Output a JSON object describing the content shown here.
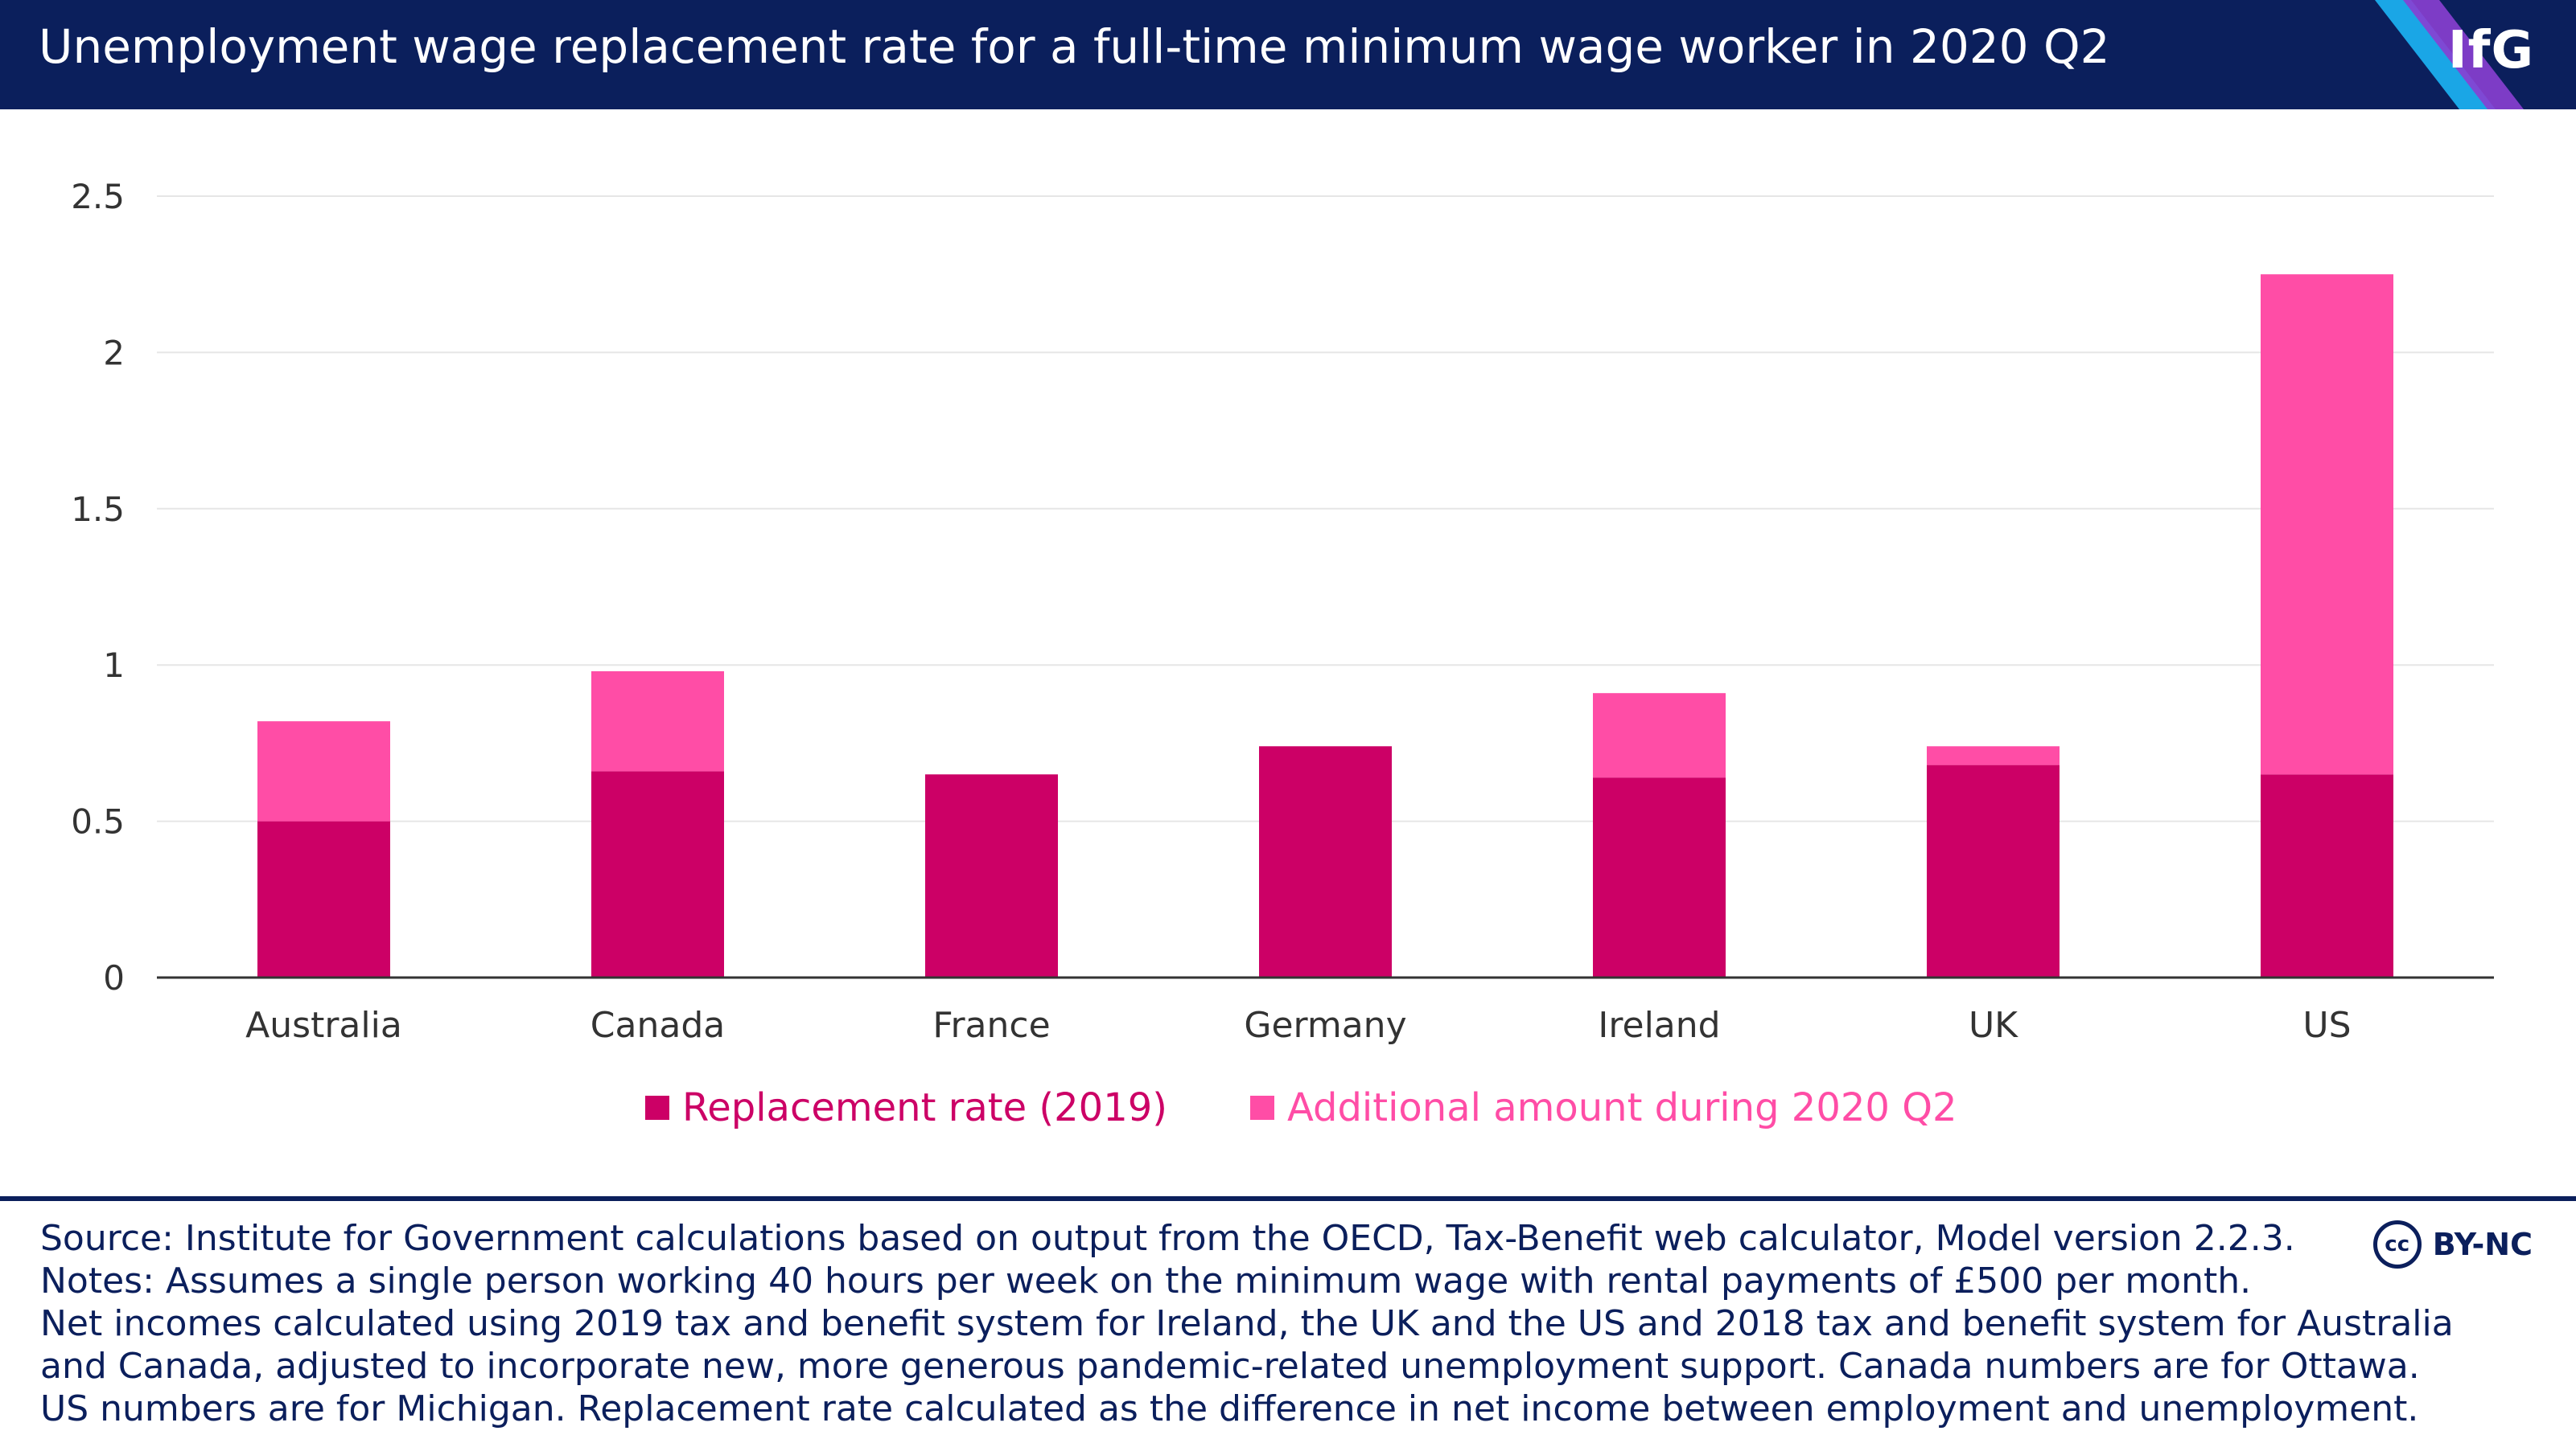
{
  "header": {
    "title": "Unemployment wage replacement rate for a full-time minimum wage worker in 2020 Q2",
    "logo": "IfG"
  },
  "colors": {
    "header_bg": "#0b1f5c",
    "series_1": "#cc0066",
    "series_2": "#ff4da6",
    "logo_stripe_1": "#1aa6e6",
    "logo_stripe_2": "#8a3fd1"
  },
  "chart_data": {
    "type": "bar",
    "stacked": true,
    "categories": [
      "Australia",
      "Canada",
      "France",
      "Germany",
      "Ireland",
      "UK",
      "US"
    ],
    "series": [
      {
        "name": "Replacement rate (2019)",
        "values": [
          0.5,
          0.66,
          0.65,
          0.74,
          0.64,
          0.68,
          0.65
        ]
      },
      {
        "name": "Additional amount during 2020 Q2",
        "values": [
          0.32,
          0.32,
          0,
          0,
          0.27,
          0.06,
          1.6
        ]
      }
    ],
    "yticks": [
      "0",
      "0.5",
      "1",
      "1.5",
      "2",
      "2.5"
    ],
    "ylim": [
      0,
      2.5
    ],
    "grid": true,
    "legend_position": "bottom"
  },
  "footer": {
    "lines": [
      "Source: Institute for Government calculations based on output from the OECD, Tax-Benefit web calculator, Model version 2.2.3.",
      "Notes: Assumes a single person working 40 hours per week on the minimum wage with rental payments of £500 per month.",
      "Net incomes calculated using 2019 tax and benefit system for Ireland, the UK and the US and 2018 tax and benefit system for Australia",
      "and Canada, adjusted to incorporate new, more generous pandemic-related unemployment support. Canada numbers are for Ottawa.",
      "US numbers are for Michigan. Replacement rate calculated as the difference in net income between employment and unemployment."
    ],
    "license_badge": "cc",
    "license_text": "BY-NC"
  }
}
